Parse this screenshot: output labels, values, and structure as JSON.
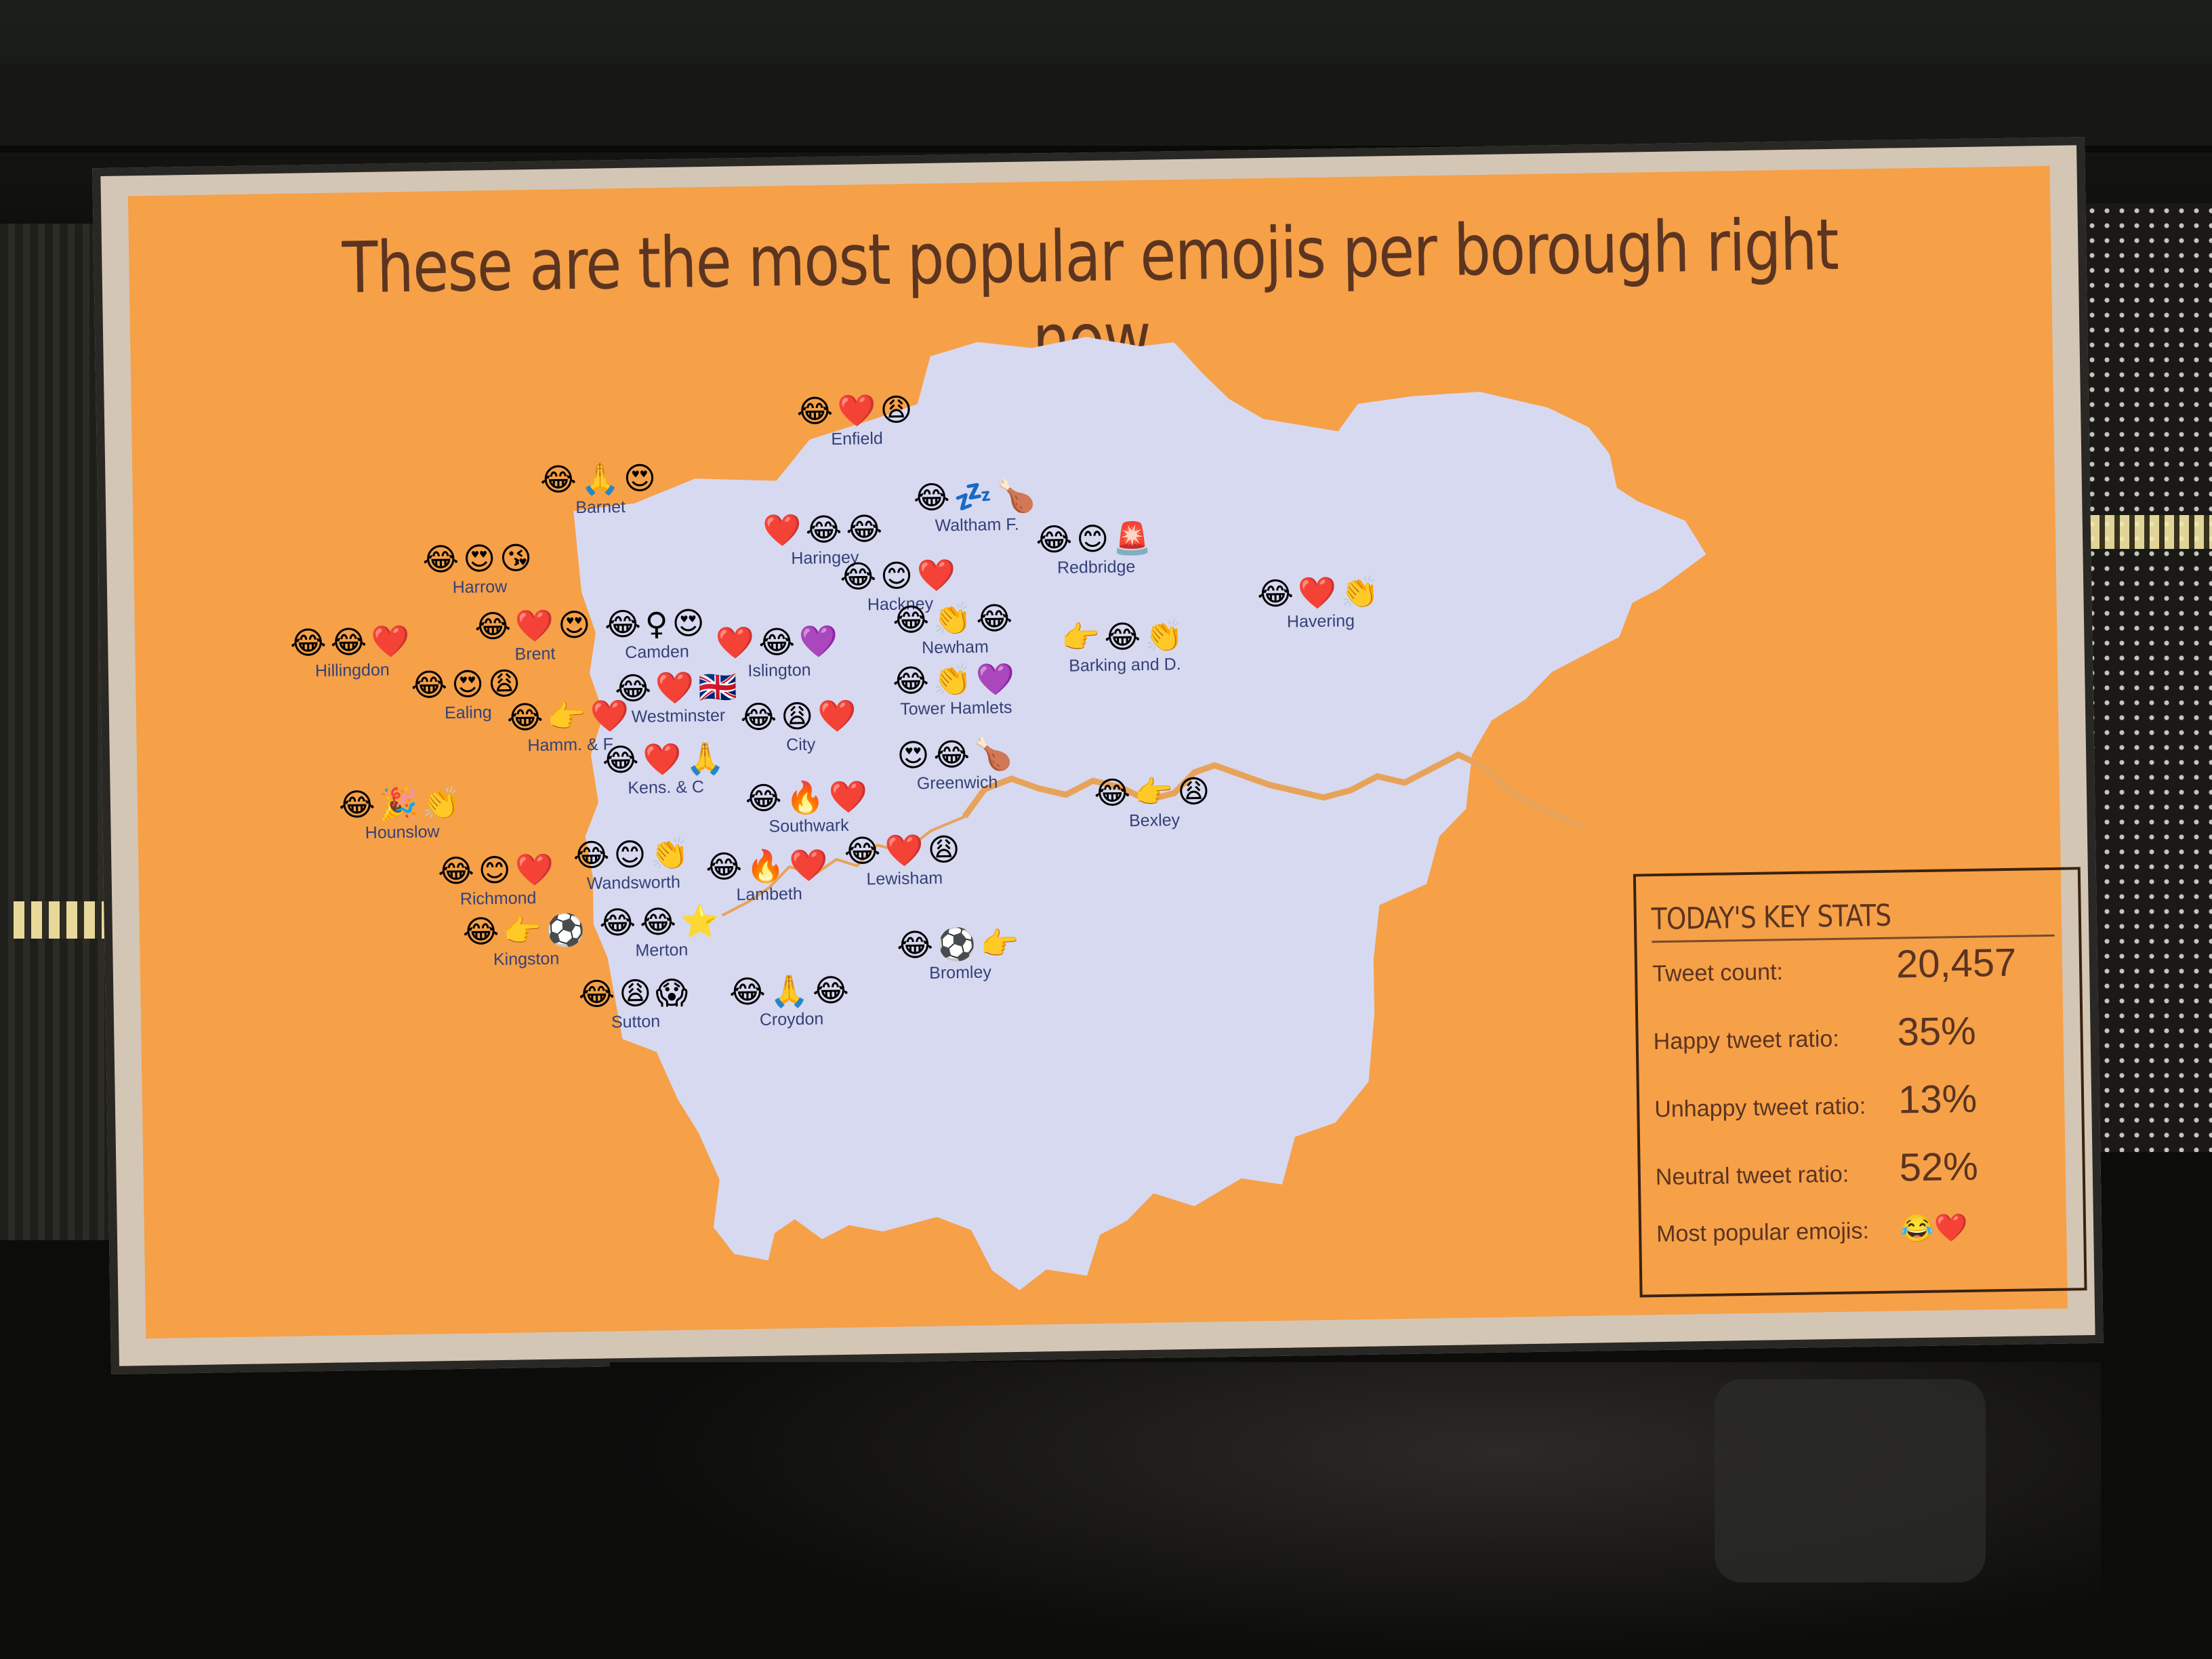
{
  "slide": {
    "title": "These are the most popular emojis per borough right now"
  },
  "boroughs": [
    {
      "name": "Enfield",
      "emojis": "😂❤️😩"
    },
    {
      "name": "Barnet",
      "emojis": "😂🙏😍"
    },
    {
      "name": "Waltham F.",
      "emojis": "😂💤🍗"
    },
    {
      "name": "Haringey",
      "emojis": "❤️😂😂"
    },
    {
      "name": "Redbridge",
      "emojis": "😂😊🚨"
    },
    {
      "name": "Harrow",
      "emojis": "😂😍😘"
    },
    {
      "name": "Hackney",
      "emojis": "😂😊❤️"
    },
    {
      "name": "Havering",
      "emojis": "😂❤️👏"
    },
    {
      "name": "Hillingdon",
      "emojis": "😂😂❤️"
    },
    {
      "name": "Brent",
      "emojis": "😂❤️😍"
    },
    {
      "name": "Camden",
      "emojis": "😂♀😍"
    },
    {
      "name": "Islington",
      "emojis": "❤️😂💜"
    },
    {
      "name": "Newham",
      "emojis": "😂👏😂"
    },
    {
      "name": "Barking and D.",
      "emojis": "👉😂👏"
    },
    {
      "name": "Ealing",
      "emojis": "😂😍😩"
    },
    {
      "name": "Westminster",
      "emojis": "😂❤️🇬🇧"
    },
    {
      "name": "Tower Hamlets",
      "emojis": "😂👏💜"
    },
    {
      "name": "Hamm. & F",
      "emojis": "😂👉❤️"
    },
    {
      "name": "City",
      "emojis": "😂😩❤️"
    },
    {
      "name": "Kens. & C",
      "emojis": "😂❤️🙏"
    },
    {
      "name": "Greenwich",
      "emojis": "😍😂🍗"
    },
    {
      "name": "Hounslow",
      "emojis": "😂🎉👏"
    },
    {
      "name": "Southwark",
      "emojis": "😂🔥❤️"
    },
    {
      "name": "Bexley",
      "emojis": "😂👉😩"
    },
    {
      "name": "Richmond",
      "emojis": "😂😊❤️"
    },
    {
      "name": "Wandsworth",
      "emojis": "😂😊👏"
    },
    {
      "name": "Lambeth",
      "emojis": "😂🔥❤️"
    },
    {
      "name": "Lewisham",
      "emojis": "😂❤️😩"
    },
    {
      "name": "Kingston",
      "emojis": "😂👉⚽"
    },
    {
      "name": "Merton",
      "emojis": "😂😂⭐"
    },
    {
      "name": "Bromley",
      "emojis": "😂⚽👉"
    },
    {
      "name": "Sutton",
      "emojis": "😂😩😱"
    },
    {
      "name": "Croydon",
      "emojis": "😂🙏😂"
    }
  ],
  "stats": {
    "title": "TODAY'S KEY STATS",
    "tweet_count_label": "Tweet count:",
    "tweet_count": "20,457",
    "happy_label": "Happy tweet ratio:",
    "happy": "35%",
    "unhappy_label": "Unhappy tweet ratio:",
    "unhappy": "13%",
    "neutral_label": "Neutral tweet ratio:",
    "neutral": "52%",
    "popular_label": "Most popular emojis:",
    "popular": "😂❤️"
  },
  "colors": {
    "slide_bg": "#f6a048",
    "map_fill": "#d7d9f0",
    "river": "#e8a35a",
    "title_text": "#5c3520",
    "label_text": "#344178"
  }
}
